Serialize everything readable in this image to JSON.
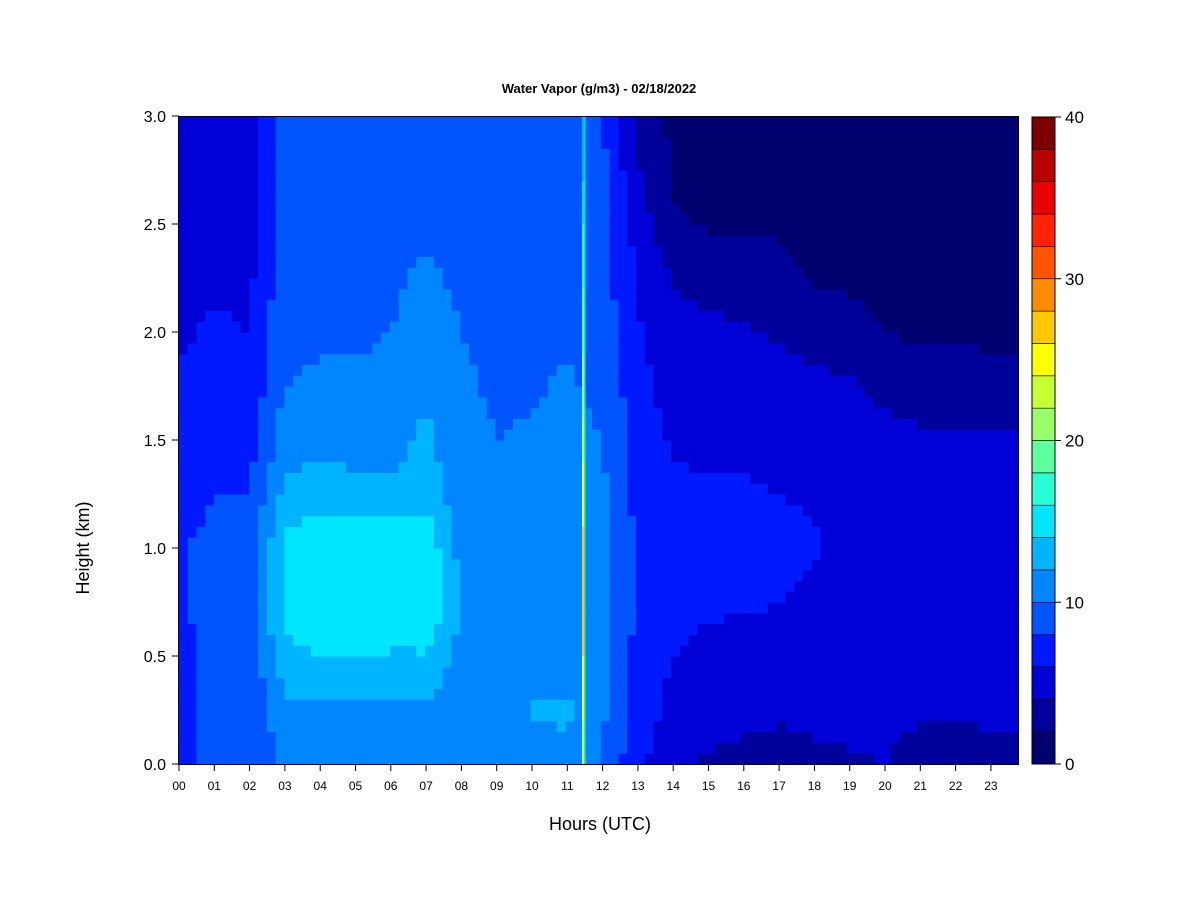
{
  "chart_data": {
    "type": "heatmap",
    "title": "Water Vapor (g/m3) - 02/18/2022",
    "xlabel": "Hours (UTC)",
    "ylabel": "Height (km)",
    "x_ticks": [
      "00",
      "01",
      "02",
      "03",
      "04",
      "05",
      "06",
      "07",
      "08",
      "09",
      "10",
      "11",
      "12",
      "13",
      "14",
      "15",
      "16",
      "17",
      "18",
      "19",
      "20",
      "21",
      "22",
      "23"
    ],
    "x_range": [
      0,
      23.9
    ],
    "y_ticks": [
      "0.0",
      "0.5",
      "1.0",
      "1.5",
      "2.0",
      "2.5",
      "3.0"
    ],
    "y_range": [
      0,
      3.0
    ],
    "colorbar": {
      "ticks": [
        "0",
        "10",
        "20",
        "30",
        "40"
      ],
      "range": [
        0,
        40
      ],
      "step": 2,
      "colors": [
        "#00006e",
        "#00009b",
        "#0000d7",
        "#0019ff",
        "#0055ff",
        "#0087ff",
        "#00b4ff",
        "#00e6ff",
        "#28ffd7",
        "#5fffa0",
        "#96ff69",
        "#c8ff32",
        "#ffff00",
        "#ffc800",
        "#ff8c00",
        "#ff5500",
        "#ff2300",
        "#eb0000",
        "#b90000",
        "#7d0000"
      ]
    },
    "hour_columns": [
      0,
      1,
      2,
      3,
      4,
      5,
      6,
      7,
      8,
      9,
      10,
      11,
      12,
      13,
      14,
      15,
      16,
      17,
      18,
      19,
      20,
      21,
      22,
      23
    ],
    "height_rows": [
      0.0,
      0.25,
      0.5,
      0.75,
      1.0,
      1.25,
      1.5,
      1.75,
      2.0,
      2.25,
      2.5,
      2.75,
      3.0
    ],
    "values_by_hour": [
      [
        7.5,
        7.5,
        7.4,
        7.8,
        7.8,
        7.2,
        6.8,
        6.2,
        5.8,
        5.4,
        5.2,
        5.0,
        4.8
      ],
      [
        8.6,
        8.6,
        8.4,
        8.8,
        8.6,
        8.0,
        7.4,
        6.8,
        6.2,
        5.8,
        5.5,
        5.2,
        5.0
      ],
      [
        8.0,
        8.4,
        8.4,
        9.0,
        8.8,
        8.0,
        7.2,
        6.6,
        6.0,
        5.6,
        5.2,
        4.9,
        4.8
      ],
      [
        10.2,
        11.5,
        13.6,
        14.6,
        14.6,
        12.6,
        11.0,
        10.0,
        9.6,
        9.2,
        9.2,
        9.0,
        8.8
      ],
      [
        10.2,
        11.6,
        14.0,
        15.6,
        15.8,
        13.2,
        11.2,
        10.2,
        9.8,
        9.4,
        9.4,
        9.2,
        9.0
      ],
      [
        10.2,
        11.6,
        14.2,
        16.0,
        15.4,
        12.8,
        11.0,
        10.2,
        9.8,
        9.6,
        9.4,
        9.2,
        9.0
      ],
      [
        10.0,
        11.2,
        13.8,
        15.2,
        15.2,
        12.8,
        11.0,
        10.4,
        10.0,
        9.8,
        9.6,
        9.4,
        9.2
      ],
      [
        10.0,
        11.6,
        13.8,
        16.2,
        15.6,
        13.2,
        12.6,
        11.4,
        10.6,
        10.2,
        9.8,
        9.6,
        9.4
      ],
      [
        10.4,
        10.6,
        11.4,
        11.6,
        11.2,
        10.6,
        10.4,
        10.2,
        10.0,
        9.8,
        9.6,
        9.4,
        9.2
      ],
      [
        10.2,
        10.2,
        10.4,
        10.6,
        10.4,
        10.2,
        10.0,
        9.8,
        9.6,
        9.4,
        9.2,
        9.0,
        8.8
      ],
      [
        11.0,
        12.2,
        10.6,
        10.8,
        10.6,
        10.4,
        10.2,
        9.8,
        9.6,
        9.4,
        9.0,
        8.6,
        8.2
      ],
      [
        11.4,
        12.4,
        11.2,
        11.2,
        11.0,
        10.8,
        10.6,
        10.2,
        9.8,
        9.6,
        9.2,
        8.8,
        8.4
      ],
      [
        9.8,
        10.4,
        10.4,
        10.6,
        10.6,
        10.4,
        10.0,
        9.6,
        9.2,
        8.8,
        8.6,
        8.4,
        8.2
      ],
      [
        6.4,
        7.0,
        7.4,
        7.6,
        7.6,
        7.4,
        7.0,
        6.6,
        6.2,
        5.8,
        5.2,
        4.2,
        3.0
      ],
      [
        4.8,
        5.4,
        6.0,
        6.4,
        6.6,
        6.4,
        5.8,
        5.2,
        4.6,
        3.8,
        2.2,
        1.8,
        1.6
      ],
      [
        3.6,
        5.0,
        5.6,
        6.2,
        6.4,
        6.2,
        5.6,
        5.0,
        4.4,
        3.4,
        1.8,
        1.6,
        1.6
      ],
      [
        3.4,
        4.6,
        5.4,
        6.2,
        6.4,
        6.2,
        5.6,
        5.0,
        4.2,
        3.2,
        1.8,
        1.6,
        1.6
      ],
      [
        3.4,
        4.2,
        5.2,
        6.0,
        6.4,
        6.0,
        5.4,
        4.8,
        3.8,
        2.4,
        1.8,
        1.6,
        1.6
      ],
      [
        3.6,
        4.4,
        5.0,
        5.6,
        6.2,
        5.8,
        5.2,
        4.6,
        3.0,
        1.8,
        1.7,
        1.6,
        1.6
      ],
      [
        3.8,
        4.6,
        5.0,
        5.4,
        5.6,
        5.4,
        5.0,
        4.4,
        2.4,
        1.8,
        1.7,
        1.6,
        1.6
      ],
      [
        4.0,
        4.6,
        5.0,
        5.2,
        5.2,
        5.2,
        4.8,
        3.4,
        2.0,
        1.8,
        1.7,
        1.6,
        1.6
      ],
      [
        3.0,
        4.4,
        4.8,
        5.0,
        5.0,
        5.0,
        4.6,
        2.6,
        1.8,
        1.8,
        1.7,
        1.6,
        1.6
      ],
      [
        2.8,
        4.2,
        4.6,
        4.8,
        4.8,
        4.8,
        4.4,
        2.6,
        1.8,
        1.8,
        1.7,
        1.6,
        1.6
      ],
      [
        3.4,
        4.4,
        4.8,
        4.8,
        4.8,
        4.8,
        4.4,
        2.4,
        1.8,
        1.8,
        1.7,
        1.6,
        1.6
      ]
    ],
    "spike": {
      "hour": 11.45,
      "min_value": 12,
      "max_value": 28
    },
    "grid": false,
    "legend": "colorbar-right"
  }
}
